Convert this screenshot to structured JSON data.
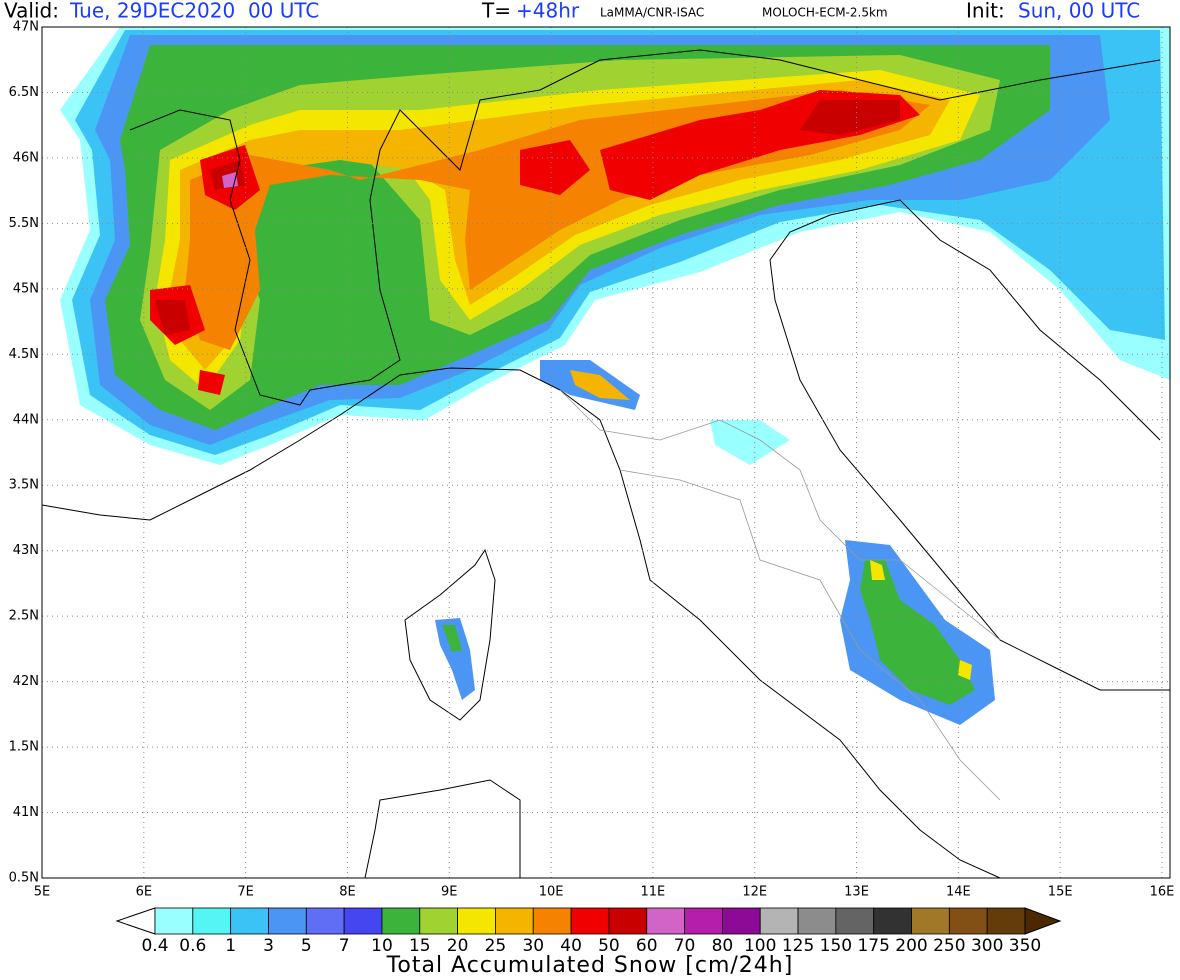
{
  "header": {
    "valid_label": "Valid:",
    "valid_time": "Tue, 29DEC2020  00 UTC",
    "step_label": "T=",
    "step": "+48hr",
    "institution": "LaMMA/CNR-ISAC",
    "model": "MOLOCH-ECM-2.5km",
    "init_label": "Init:",
    "init_time": "Sun, 00 UTC"
  },
  "map": {
    "lat_labels": [
      "47N",
      "6.5N",
      "46N",
      "5.5N",
      "45N",
      "4.5N",
      "44N",
      "3.5N",
      "43N",
      "2.5N",
      "42N",
      "1.5N",
      "41N",
      "0.5N"
    ],
    "lon_labels": [
      "5E",
      "6E",
      "7E",
      "8E",
      "9E",
      "10E",
      "11E",
      "12E",
      "13E",
      "14E",
      "15E",
      "16E"
    ]
  },
  "colorbar": {
    "title": "Total Accumulated Snow [cm/24h]",
    "levels": [
      0.4,
      0.6,
      1,
      3,
      5,
      7,
      10,
      15,
      20,
      25,
      30,
      40,
      50,
      60,
      70,
      80,
      100,
      125,
      150,
      175,
      200,
      250,
      300,
      350
    ],
    "colors": [
      "#ffffff",
      "#99ffff",
      "#55f5f5",
      "#3cc3f5",
      "#4b96f5",
      "#5f6ef5",
      "#4646f0",
      "#3cb43c",
      "#a0d232",
      "#f5e600",
      "#f5b400",
      "#f58200",
      "#f00000",
      "#c80000",
      "#d264c8",
      "#b41eaa",
      "#8c0a96",
      "#b4b4b4",
      "#8c8c8c",
      "#646464",
      "#323232",
      "#a07828",
      "#825014",
      "#643c0a",
      "#4b2800"
    ]
  }
}
